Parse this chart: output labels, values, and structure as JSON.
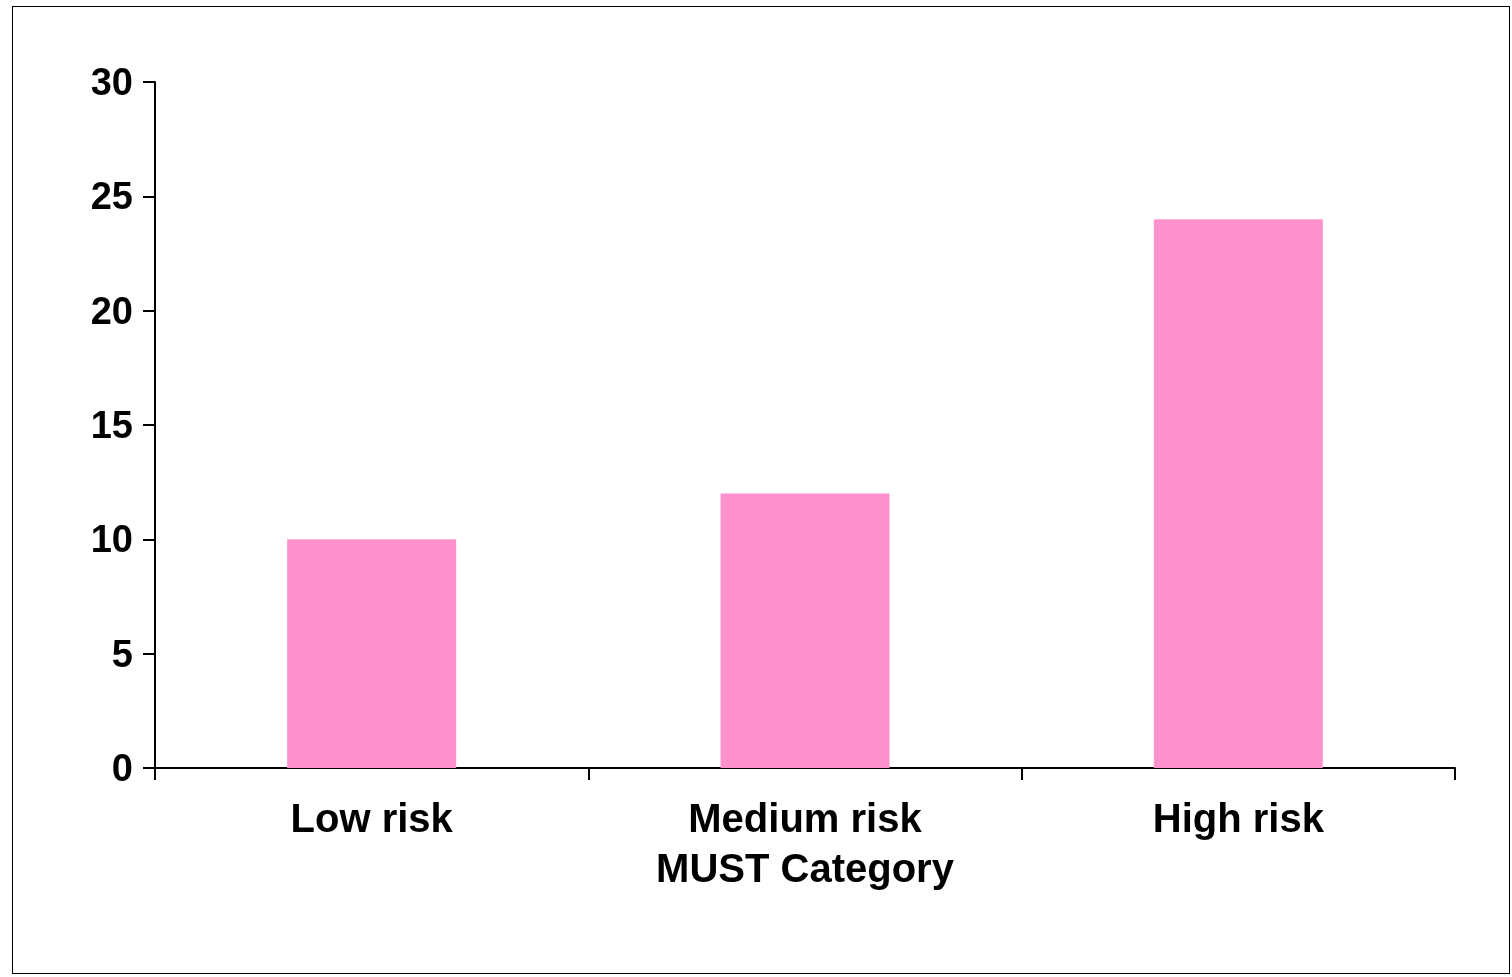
{
  "chart_data": {
    "type": "bar",
    "xlabel": "MUST Category",
    "categories": [
      "Low risk",
      "Medium risk",
      "High risk"
    ],
    "values": [
      10,
      12,
      24
    ],
    "color": "#ff92cc",
    "ylim": [
      0,
      30
    ],
    "yticks": [
      0,
      5,
      10,
      15,
      20,
      25,
      30
    ],
    "grid": false
  }
}
